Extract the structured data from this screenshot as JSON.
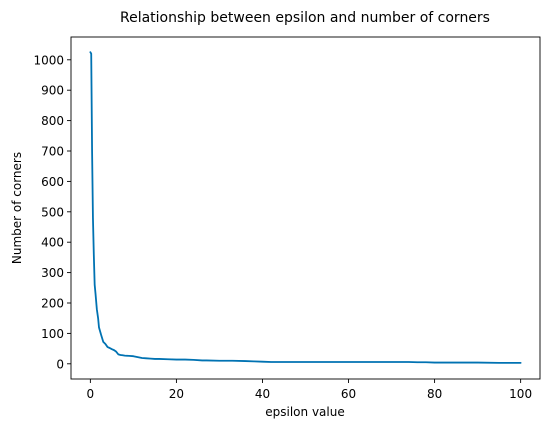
{
  "chart_data": {
    "type": "line",
    "title": "Relationship between epsilon and number of corners",
    "xlabel": "epsilon value",
    "ylabel": "Number of corners",
    "xlim": [
      -4.5,
      104.5
    ],
    "ylim": [
      -50,
      1075
    ],
    "xticks": [
      0,
      20,
      40,
      60,
      80,
      100
    ],
    "yticks": [
      0,
      100,
      200,
      300,
      400,
      500,
      600,
      700,
      800,
      900,
      1000
    ],
    "grid": false,
    "color": "#0072b2",
    "series": [
      {
        "name": "",
        "x": [
          0.0,
          0.2,
          0.4,
          0.6,
          0.8,
          1.0,
          1.2,
          1.5,
          1.8,
          2.0,
          2.5,
          3.0,
          3.5,
          4.0,
          4.5,
          5.0,
          5.5,
          6.0,
          6.5,
          7.0,
          7.5,
          8.0,
          9.0,
          10.0,
          11.0,
          12.0,
          13.0,
          14.0,
          15.0,
          16.0,
          18.0,
          20.0,
          22.0,
          24.0,
          26.0,
          27.0,
          30.0,
          33.0,
          36.0,
          38.0,
          40.0,
          42.0,
          45.0,
          50.0,
          55.0,
          60.0,
          65.0,
          70.0,
          74.0,
          76.0,
          78.0,
          80.0,
          85.0,
          90.0,
          95.0,
          100.0
        ],
        "values": [
          1025,
          1020,
          700,
          480,
          360,
          260,
          230,
          180,
          150,
          120,
          95,
          72,
          65,
          55,
          52,
          48,
          45,
          40,
          31,
          29,
          28,
          27,
          26,
          25,
          22,
          19,
          18,
          17,
          16,
          16,
          15,
          14,
          14,
          13,
          11,
          11,
          10,
          10,
          9,
          8,
          7,
          6,
          6,
          6,
          6,
          6,
          6,
          6,
          6,
          5,
          5,
          4,
          4,
          4,
          3,
          3
        ]
      }
    ]
  }
}
